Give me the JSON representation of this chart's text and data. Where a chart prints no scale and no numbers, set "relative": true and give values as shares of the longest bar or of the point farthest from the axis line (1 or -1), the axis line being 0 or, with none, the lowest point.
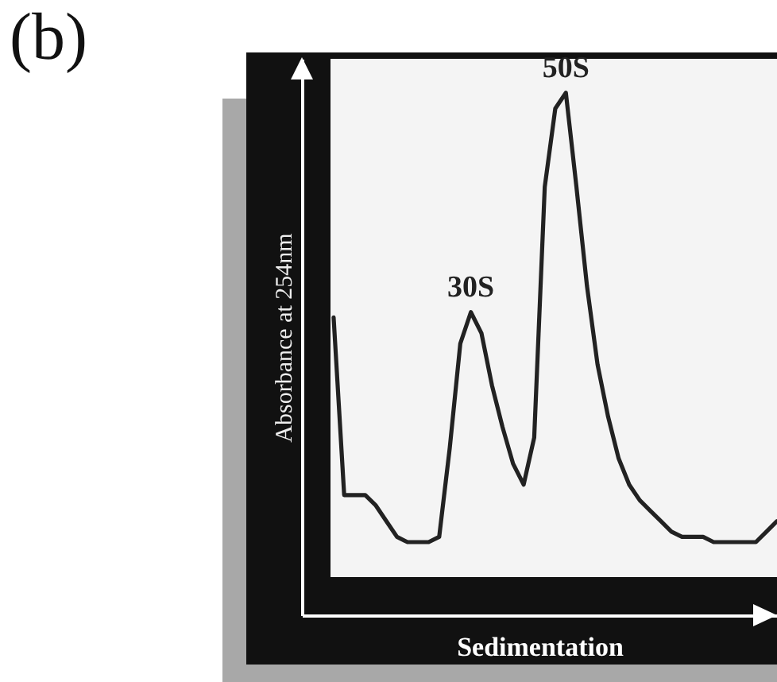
{
  "chart_data": {
    "type": "line",
    "title": "(b)",
    "xlabel": "Sedimentation",
    "ylabel": "Absorbance at 254nm",
    "relative": true,
    "categories": [
      null,
      null,
      null,
      null,
      null,
      null,
      null,
      null,
      null,
      null,
      null,
      null,
      null,
      null,
      null,
      null,
      null,
      null,
      null,
      null,
      null,
      null,
      null,
      null,
      null,
      null,
      null,
      null,
      null,
      null,
      null,
      null,
      null,
      null,
      null,
      null,
      null,
      null,
      null,
      null,
      null,
      null,
      null
    ],
    "series": [
      {
        "color": "#222222",
        "values": [
          0.57,
          0.23,
          0.23,
          0.23,
          0.21,
          0.18,
          0.15,
          0.14,
          0.14,
          0.14,
          0.15,
          0.32,
          0.52,
          0.58,
          0.54,
          0.44,
          0.36,
          0.29,
          0.25,
          0.34,
          0.82,
          0.97,
          1.0,
          0.82,
          0.63,
          0.48,
          0.38,
          0.3,
          0.25,
          0.22,
          0.2,
          0.18,
          0.16,
          0.15,
          0.15,
          0.15,
          0.14,
          0.14,
          0.14,
          0.14,
          0.14,
          0.16,
          0.18
        ]
      }
    ],
    "annotations": [
      {
        "text": "30S",
        "y": 0.58
      },
      {
        "text": "50S",
        "y": 1.0
      }
    ],
    "marker": "none",
    "grid": false
  }
}
